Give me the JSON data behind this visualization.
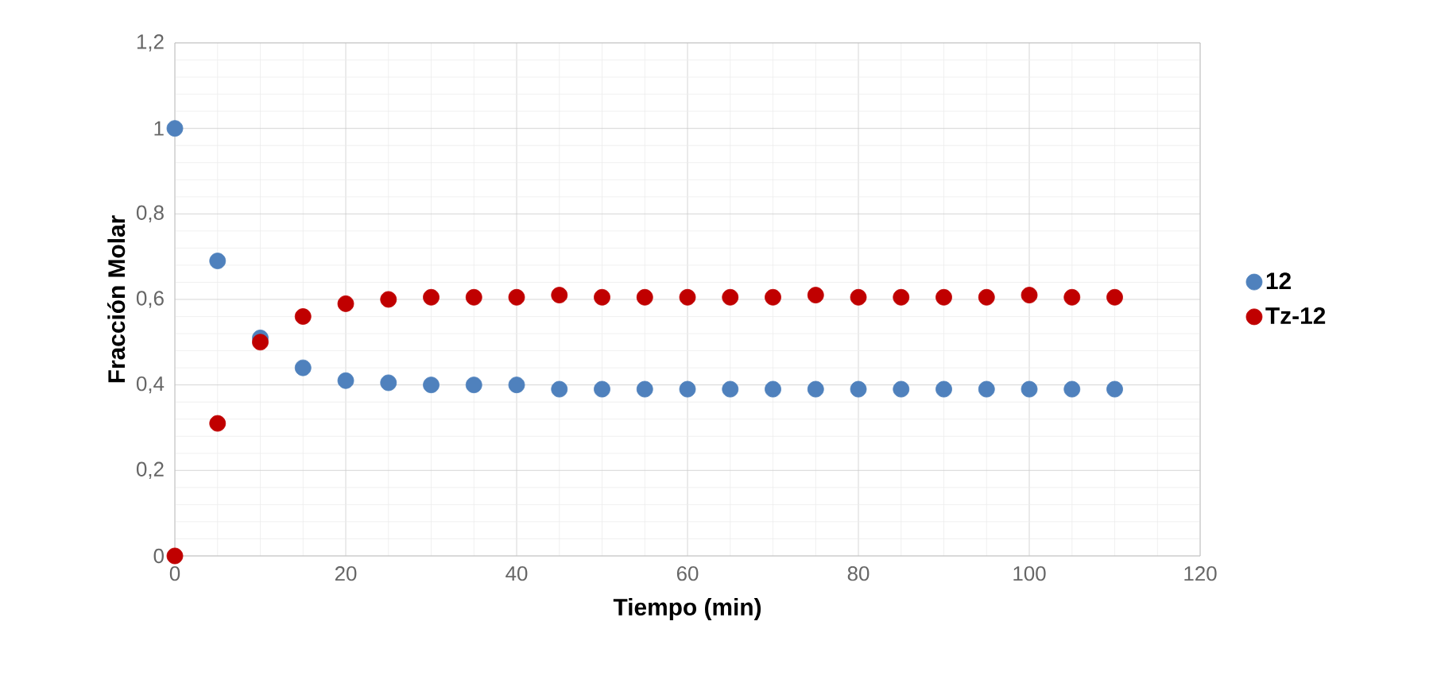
{
  "chart_data": {
    "type": "scatter",
    "xlabel": "Tiempo (min)",
    "ylabel": "Fracción Molar",
    "x": [
      0,
      5,
      10,
      15,
      20,
      25,
      30,
      35,
      40,
      45,
      50,
      55,
      60,
      65,
      70,
      75,
      80,
      85,
      90,
      95,
      100,
      105,
      110
    ],
    "series": [
      {
        "name": "12",
        "color": "#4f81bd",
        "values": [
          1,
          0.69,
          0.51,
          0.44,
          0.41,
          0.405,
          0.4,
          0.4,
          0.4,
          0.39,
          0.39,
          0.39,
          0.39,
          0.39,
          0.39,
          0.39,
          0.39,
          0.39,
          0.39,
          0.39,
          0.39,
          0.39,
          0.39
        ]
      },
      {
        "name": "Tz-12",
        "color": "#c00000",
        "values": [
          0,
          0.31,
          0.5,
          0.56,
          0.59,
          0.6,
          0.605,
          0.605,
          0.605,
          0.61,
          0.605,
          0.605,
          0.605,
          0.605,
          0.605,
          0.61,
          0.605,
          0.605,
          0.605,
          0.605,
          0.61,
          0.605,
          0.605
        ]
      }
    ],
    "xlim": [
      0,
      120
    ],
    "xticks": [
      0,
      20,
      40,
      60,
      80,
      100,
      120
    ],
    "ylim": [
      0,
      1.2
    ],
    "yticks": [
      {
        "value": 0,
        "label": "0"
      },
      {
        "value": 0.2,
        "label": "0,2"
      },
      {
        "value": 0.4,
        "label": "0,4"
      },
      {
        "value": 0.6,
        "label": "0,6"
      },
      {
        "value": 0.8,
        "label": "0,8"
      },
      {
        "value": 1,
        "label": "1"
      },
      {
        "value": 1.2,
        "label": "1,2"
      }
    ],
    "grid": true,
    "legend": "right"
  }
}
